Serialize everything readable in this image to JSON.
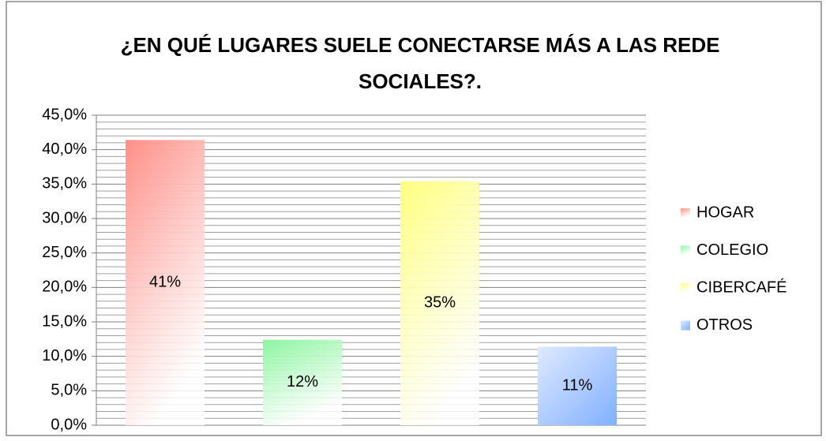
{
  "chart_data": {
    "type": "bar",
    "title": "¿EN QUÉ LUGARES SUELE CONECTARSE MÁS A LAS REDE SOCIALES?.",
    "series": [
      {
        "name": "HOGAR",
        "color": "#ff8f88",
        "values": [
          41.4
        ],
        "value_labels": [
          "41%"
        ]
      },
      {
        "name": "COLEGIO",
        "color": "#8cf5a0",
        "values": [
          12.4
        ],
        "value_labels": [
          "12%"
        ]
      },
      {
        "name": "CIBERCAFÉ",
        "color": "#ffff80",
        "values": [
          35.4
        ],
        "value_labels": [
          "35%"
        ]
      },
      {
        "name": "OTROS",
        "color": "#80b0ff",
        "values": [
          11.4
        ],
        "value_labels": [
          "11%"
        ]
      }
    ],
    "ylim": [
      0,
      45
    ],
    "yticks": [
      {
        "value": 0,
        "label": "0,0%"
      },
      {
        "value": 5,
        "label": "5,0%"
      },
      {
        "value": 10,
        "label": "10,0%"
      },
      {
        "value": 15,
        "label": "15,0%"
      },
      {
        "value": 20,
        "label": "20,0%"
      },
      {
        "value": 25,
        "label": "25,0%"
      },
      {
        "value": 30,
        "label": "30,0%"
      },
      {
        "value": 35,
        "label": "35,0%"
      },
      {
        "value": 40,
        "label": "40,0%"
      },
      {
        "value": 45,
        "label": "45,0%"
      }
    ],
    "grid": true,
    "legend": "right"
  }
}
